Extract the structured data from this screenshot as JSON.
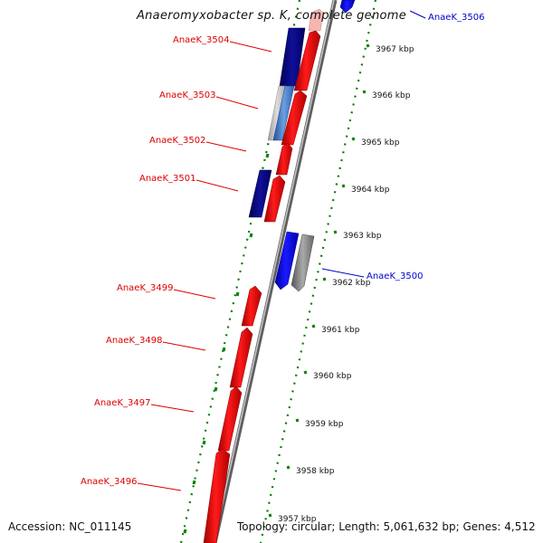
{
  "header": {
    "title": "Anaeromyxobacter sp. K, complete genome"
  },
  "footer": {
    "accession": "Accession: NC_011145",
    "summary": "Topology: circular; Length: 5,061,632 bp; Genes: 4,512"
  },
  "scale_ticks": [
    {
      "label": "3967 kbp"
    },
    {
      "label": "3966 kbp"
    },
    {
      "label": "3965 kbp"
    },
    {
      "label": "3964 kbp"
    },
    {
      "label": "3963 kbp"
    },
    {
      "label": "3962 kbp"
    },
    {
      "label": "3961 kbp"
    },
    {
      "label": "3960 kbp"
    },
    {
      "label": "3959 kbp"
    },
    {
      "label": "3958 kbp"
    },
    {
      "label": "3957 kbp"
    }
  ],
  "gene_labels": [
    {
      "id": "AnaeK_3504",
      "color": "#dd0000",
      "side": "left"
    },
    {
      "id": "AnaeK_3503",
      "color": "#dd0000",
      "side": "left"
    },
    {
      "id": "AnaeK_3502",
      "color": "#dd0000",
      "side": "left"
    },
    {
      "id": "AnaeK_3501",
      "color": "#dd0000",
      "side": "left"
    },
    {
      "id": "AnaeK_3499",
      "color": "#dd0000",
      "side": "left"
    },
    {
      "id": "AnaeK_3498",
      "color": "#dd0000",
      "side": "left"
    },
    {
      "id": "AnaeK_3497",
      "color": "#dd0000",
      "side": "left"
    },
    {
      "id": "AnaeK_3496",
      "color": "#dd0000",
      "side": "left"
    },
    {
      "id": "AnaeK_3506",
      "color": "#0000cc",
      "side": "right"
    },
    {
      "id": "AnaeK_3500",
      "color": "#0000cc",
      "side": "right"
    }
  ],
  "colors": {
    "forward_cds": "#ee0000",
    "reverse_cds": "#0000ee",
    "dark_blue_cds": "#000080",
    "grey_feature": "#8c8c8c",
    "backbone": "#8c8c8c",
    "dotted_track": "#008000"
  }
}
